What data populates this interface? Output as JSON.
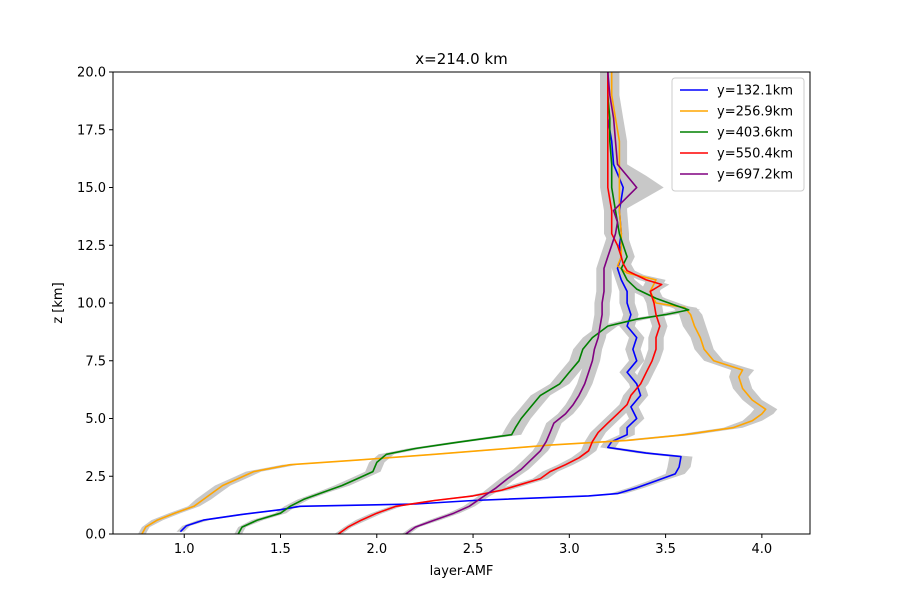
{
  "chart_data": {
    "type": "line",
    "title": "x=214.0 km",
    "xlabel": "layer-AMF",
    "ylabel": "z [km]",
    "xlim": [
      0.63,
      4.25
    ],
    "ylim": [
      0,
      20
    ],
    "xticks": [
      1.0,
      1.5,
      2.0,
      2.5,
      3.0,
      3.5,
      4.0
    ],
    "xtick_labels": [
      "1.0",
      "1.5",
      "2.0",
      "2.5",
      "3.0",
      "3.5",
      "4.0"
    ],
    "yticks": [
      0.0,
      2.5,
      5.0,
      7.5,
      10.0,
      12.5,
      15.0,
      17.5,
      20.0
    ],
    "ytick_labels": [
      "0.0",
      "2.5",
      "5.0",
      "7.5",
      "10.0",
      "12.5",
      "15.0",
      "17.5",
      "20.0"
    ],
    "grid": false,
    "legend_position": "top-right",
    "band_color": "#c8c8c8",
    "series": [
      {
        "name": "y=132.1km",
        "color": "#0000ff",
        "points": [
          [
            0.98,
            0.1
          ],
          [
            1.01,
            0.35
          ],
          [
            1.1,
            0.6
          ],
          [
            1.3,
            0.85
          ],
          [
            1.5,
            1.05
          ],
          [
            1.6,
            1.2
          ],
          [
            2.2,
            1.3
          ],
          [
            2.5,
            1.45
          ],
          [
            3.1,
            1.65
          ],
          [
            3.25,
            1.75
          ],
          [
            3.35,
            2.0
          ],
          [
            3.45,
            2.3
          ],
          [
            3.55,
            2.6
          ],
          [
            3.57,
            2.9
          ],
          [
            3.58,
            3.35
          ],
          [
            3.4,
            3.5
          ],
          [
            3.2,
            3.75
          ],
          [
            3.22,
            4.0
          ],
          [
            3.3,
            4.3
          ],
          [
            3.3,
            4.6
          ],
          [
            3.35,
            5.0
          ],
          [
            3.32,
            5.5
          ],
          [
            3.37,
            6.0
          ],
          [
            3.35,
            6.5
          ],
          [
            3.3,
            7.0
          ],
          [
            3.35,
            7.5
          ],
          [
            3.33,
            8.0
          ],
          [
            3.35,
            8.5
          ],
          [
            3.3,
            9.0
          ],
          [
            3.32,
            9.5
          ],
          [
            3.3,
            10.0
          ],
          [
            3.3,
            10.5
          ],
          [
            3.27,
            11.0
          ],
          [
            3.25,
            11.5
          ],
          [
            3.27,
            12.0
          ],
          [
            3.26,
            12.5
          ],
          [
            3.27,
            13.0
          ],
          [
            3.26,
            14.0
          ],
          [
            3.28,
            15.0
          ],
          [
            3.23,
            16.0
          ],
          [
            3.22,
            17.0
          ],
          [
            3.2,
            18.0
          ],
          [
            3.2,
            19.0
          ],
          [
            3.2,
            20.0
          ]
        ],
        "band_width": [
          0.02,
          0.02,
          0.03,
          0.03,
          0.03,
          0.03,
          0.03,
          0.03,
          0.04,
          0.04,
          0.04,
          0.04,
          0.05,
          0.06,
          0.06,
          0.05,
          0.04,
          0.04,
          0.04,
          0.04,
          0.04,
          0.04,
          0.04,
          0.04,
          0.04,
          0.04,
          0.04,
          0.04,
          0.04,
          0.04,
          0.04,
          0.04,
          0.03,
          0.03,
          0.03,
          0.03,
          0.03,
          0.03,
          0.03,
          0.03,
          0.03,
          0.03,
          0.03,
          0.03
        ]
      },
      {
        "name": "y=256.9km",
        "color": "#ffa500",
        "points": [
          [
            0.78,
            0.0
          ],
          [
            0.8,
            0.3
          ],
          [
            0.86,
            0.6
          ],
          [
            0.95,
            0.9
          ],
          [
            1.05,
            1.2
          ],
          [
            1.1,
            1.5
          ],
          [
            1.15,
            1.8
          ],
          [
            1.2,
            2.1
          ],
          [
            1.28,
            2.4
          ],
          [
            1.36,
            2.7
          ],
          [
            1.55,
            3.0
          ],
          [
            1.9,
            3.2
          ],
          [
            2.3,
            3.45
          ],
          [
            2.6,
            3.65
          ],
          [
            2.9,
            3.85
          ],
          [
            3.3,
            4.05
          ],
          [
            3.6,
            4.3
          ],
          [
            3.85,
            4.6
          ],
          [
            3.95,
            4.9
          ],
          [
            4.0,
            5.2
          ],
          [
            4.02,
            5.4
          ],
          [
            3.95,
            5.8
          ],
          [
            3.9,
            6.3
          ],
          [
            3.88,
            6.8
          ],
          [
            3.9,
            7.1
          ],
          [
            3.75,
            7.5
          ],
          [
            3.7,
            8.0
          ],
          [
            3.68,
            8.5
          ],
          [
            3.65,
            9.0
          ],
          [
            3.63,
            9.5
          ],
          [
            3.6,
            9.8
          ],
          [
            3.45,
            10.0
          ],
          [
            3.42,
            10.5
          ],
          [
            3.45,
            11.0
          ],
          [
            3.3,
            11.3
          ],
          [
            3.25,
            11.6
          ],
          [
            3.27,
            12.0
          ],
          [
            3.27,
            13.0
          ],
          [
            3.26,
            14.0
          ],
          [
            3.26,
            15.0
          ],
          [
            3.26,
            16.0
          ],
          [
            3.26,
            17.0
          ],
          [
            3.24,
            18.0
          ],
          [
            3.22,
            19.0
          ],
          [
            3.22,
            20.0
          ]
        ],
        "band_width": [
          0.02,
          0.02,
          0.03,
          0.03,
          0.03,
          0.04,
          0.04,
          0.04,
          0.04,
          0.04,
          0.04,
          0.04,
          0.04,
          0.04,
          0.04,
          0.05,
          0.05,
          0.05,
          0.05,
          0.06,
          0.06,
          0.05,
          0.05,
          0.05,
          0.06,
          0.05,
          0.05,
          0.05,
          0.06,
          0.06,
          0.06,
          0.05,
          0.05,
          0.05,
          0.04,
          0.04,
          0.04,
          0.04,
          0.04,
          0.04,
          0.04,
          0.04,
          0.04,
          0.04,
          0.04
        ]
      },
      {
        "name": "y=403.6km",
        "color": "#008000",
        "points": [
          [
            1.28,
            0.0
          ],
          [
            1.3,
            0.3
          ],
          [
            1.38,
            0.6
          ],
          [
            1.5,
            0.9
          ],
          [
            1.55,
            1.2
          ],
          [
            1.62,
            1.5
          ],
          [
            1.72,
            1.8
          ],
          [
            1.82,
            2.1
          ],
          [
            1.9,
            2.4
          ],
          [
            1.98,
            2.7
          ],
          [
            2.0,
            3.1
          ],
          [
            2.05,
            3.45
          ],
          [
            2.2,
            3.7
          ],
          [
            2.4,
            3.95
          ],
          [
            2.7,
            4.3
          ],
          [
            2.72,
            4.6
          ],
          [
            2.75,
            5.0
          ],
          [
            2.8,
            5.5
          ],
          [
            2.85,
            6.0
          ],
          [
            2.95,
            6.5
          ],
          [
            3.0,
            7.0
          ],
          [
            3.05,
            7.5
          ],
          [
            3.07,
            8.0
          ],
          [
            3.12,
            8.5
          ],
          [
            3.2,
            9.0
          ],
          [
            3.35,
            9.3
          ],
          [
            3.5,
            9.5
          ],
          [
            3.62,
            9.7
          ],
          [
            3.55,
            9.9
          ],
          [
            3.45,
            10.2
          ],
          [
            3.35,
            10.6
          ],
          [
            3.3,
            11.0
          ],
          [
            3.27,
            11.5
          ],
          [
            3.3,
            12.0
          ],
          [
            3.28,
            12.5
          ],
          [
            3.26,
            13.0
          ],
          [
            3.24,
            14.0
          ],
          [
            3.22,
            15.0
          ],
          [
            3.22,
            16.0
          ],
          [
            3.21,
            17.0
          ],
          [
            3.21,
            18.0
          ],
          [
            3.2,
            19.0
          ],
          [
            3.2,
            20.0
          ]
        ],
        "band_width": [
          0.02,
          0.02,
          0.03,
          0.03,
          0.03,
          0.03,
          0.03,
          0.04,
          0.04,
          0.04,
          0.04,
          0.04,
          0.04,
          0.04,
          0.05,
          0.05,
          0.05,
          0.05,
          0.05,
          0.05,
          0.05,
          0.05,
          0.05,
          0.05,
          0.05,
          0.05,
          0.05,
          0.06,
          0.05,
          0.05,
          0.05,
          0.04,
          0.04,
          0.04,
          0.04,
          0.04,
          0.04,
          0.04,
          0.04,
          0.04,
          0.04,
          0.04,
          0.04
        ]
      },
      {
        "name": "y=550.4km",
        "color": "#ff0000",
        "points": [
          [
            1.8,
            0.0
          ],
          [
            1.85,
            0.3
          ],
          [
            1.92,
            0.6
          ],
          [
            2.0,
            0.9
          ],
          [
            2.1,
            1.2
          ],
          [
            2.3,
            1.45
          ],
          [
            2.5,
            1.65
          ],
          [
            2.65,
            1.9
          ],
          [
            2.75,
            2.15
          ],
          [
            2.85,
            2.4
          ],
          [
            2.9,
            2.7
          ],
          [
            2.98,
            3.0
          ],
          [
            3.05,
            3.3
          ],
          [
            3.1,
            3.6
          ],
          [
            3.12,
            4.0
          ],
          [
            3.15,
            4.4
          ],
          [
            3.2,
            4.8
          ],
          [
            3.25,
            5.2
          ],
          [
            3.3,
            5.6
          ],
          [
            3.32,
            6.0
          ],
          [
            3.37,
            6.5
          ],
          [
            3.4,
            7.0
          ],
          [
            3.43,
            7.5
          ],
          [
            3.45,
            8.0
          ],
          [
            3.45,
            8.5
          ],
          [
            3.47,
            9.0
          ],
          [
            3.45,
            9.5
          ],
          [
            3.44,
            10.0
          ],
          [
            3.42,
            10.5
          ],
          [
            3.48,
            10.8
          ],
          [
            3.4,
            11.0
          ],
          [
            3.3,
            11.4
          ],
          [
            3.28,
            11.7
          ],
          [
            3.27,
            12.0
          ],
          [
            3.25,
            12.5
          ],
          [
            3.22,
            13.0
          ],
          [
            3.22,
            14.0
          ],
          [
            3.2,
            15.0
          ],
          [
            3.2,
            16.0
          ],
          [
            3.2,
            17.0
          ],
          [
            3.2,
            18.0
          ],
          [
            3.2,
            19.0
          ],
          [
            3.2,
            20.0
          ]
        ],
        "band_width": [
          0.02,
          0.02,
          0.03,
          0.03,
          0.03,
          0.03,
          0.03,
          0.04,
          0.04,
          0.04,
          0.04,
          0.04,
          0.04,
          0.04,
          0.04,
          0.04,
          0.04,
          0.04,
          0.04,
          0.04,
          0.04,
          0.04,
          0.04,
          0.04,
          0.04,
          0.04,
          0.04,
          0.04,
          0.04,
          0.04,
          0.04,
          0.04,
          0.04,
          0.04,
          0.04,
          0.04,
          0.04,
          0.04,
          0.04,
          0.04,
          0.04,
          0.04,
          0.04
        ]
      },
      {
        "name": "y=697.2km",
        "color": "#800080",
        "points": [
          [
            2.15,
            0.0
          ],
          [
            2.2,
            0.3
          ],
          [
            2.3,
            0.6
          ],
          [
            2.4,
            0.9
          ],
          [
            2.48,
            1.2
          ],
          [
            2.55,
            1.6
          ],
          [
            2.62,
            2.0
          ],
          [
            2.68,
            2.4
          ],
          [
            2.75,
            2.8
          ],
          [
            2.8,
            3.2
          ],
          [
            2.85,
            3.6
          ],
          [
            2.88,
            4.0
          ],
          [
            2.9,
            4.4
          ],
          [
            2.92,
            4.8
          ],
          [
            2.98,
            5.2
          ],
          [
            3.02,
            5.6
          ],
          [
            3.05,
            6.0
          ],
          [
            3.08,
            6.5
          ],
          [
            3.1,
            7.0
          ],
          [
            3.12,
            7.5
          ],
          [
            3.13,
            8.0
          ],
          [
            3.15,
            8.5
          ],
          [
            3.16,
            9.0
          ],
          [
            3.17,
            9.5
          ],
          [
            3.17,
            10.0
          ],
          [
            3.18,
            10.5
          ],
          [
            3.18,
            11.0
          ],
          [
            3.18,
            11.5
          ],
          [
            3.2,
            12.0
          ],
          [
            3.22,
            12.5
          ],
          [
            3.24,
            13.0
          ],
          [
            3.25,
            13.5
          ],
          [
            3.23,
            14.0
          ],
          [
            3.35,
            15.0
          ],
          [
            3.3,
            15.5
          ],
          [
            3.25,
            16.0
          ],
          [
            3.24,
            17.0
          ],
          [
            3.23,
            18.0
          ],
          [
            3.21,
            19.0
          ],
          [
            3.2,
            20.0
          ]
        ],
        "band_width": [
          0.02,
          0.02,
          0.03,
          0.03,
          0.03,
          0.03,
          0.04,
          0.04,
          0.04,
          0.04,
          0.04,
          0.04,
          0.04,
          0.04,
          0.04,
          0.04,
          0.04,
          0.04,
          0.04,
          0.04,
          0.04,
          0.04,
          0.04,
          0.04,
          0.04,
          0.04,
          0.04,
          0.04,
          0.04,
          0.04,
          0.04,
          0.05,
          0.05,
          0.14,
          0.1,
          0.05,
          0.04,
          0.04,
          0.04,
          0.04
        ]
      }
    ]
  }
}
